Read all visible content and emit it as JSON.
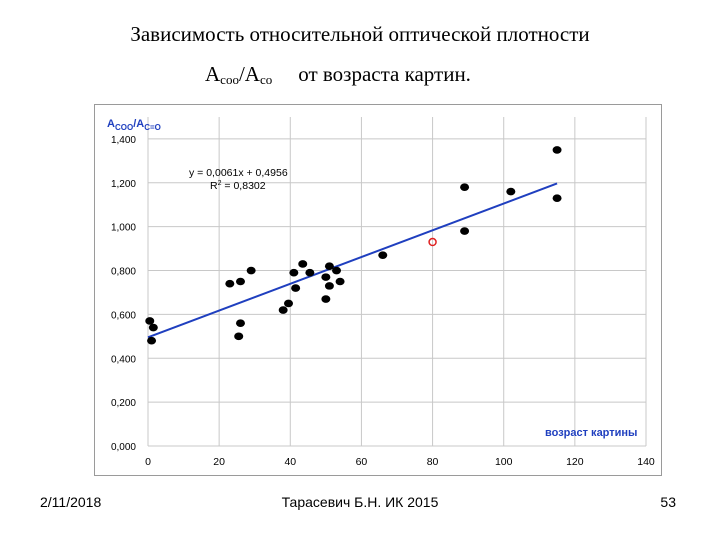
{
  "slide": {
    "title_line1": "Зависимость относительной оптической плотности",
    "title_line2_a": "A",
    "title_line2_a_sub": "coo",
    "title_line2_sep": "/A",
    "title_line2_b_sub": "co",
    "title_line2_rest": "от возраста картин."
  },
  "footer": {
    "date": "2/11/2018",
    "author": "Тарасевич Б.Н. ИК 2015",
    "page": "53"
  },
  "chart_data": {
    "type": "scatter",
    "ylabel": "A",
    "ylabel_sub1": "COO",
    "ylabel_mid": "/A",
    "ylabel_sub2": "C=O",
    "xlabel": "возраст картины",
    "equation": "y = 0,0061x + 0,4956",
    "r2_prefix": "R",
    "r2_sup": "2",
    "r2_value": " = 0,8302",
    "xlim": [
      0,
      140
    ],
    "ylim": [
      0,
      1.5
    ],
    "x_ticks": [
      0,
      20,
      40,
      60,
      80,
      100,
      120,
      140
    ],
    "x_tick_labels": [
      "0",
      "20",
      "40",
      "60",
      "80",
      "100",
      "120",
      "140"
    ],
    "y_ticks": [
      0,
      0.2,
      0.4,
      0.6,
      0.8,
      1.0,
      1.2,
      1.4
    ],
    "y_tick_labels": [
      "0,000",
      "0,200",
      "0,400",
      "0,600",
      "0,800",
      "1,000",
      "1,200",
      "1,400"
    ],
    "grid": true,
    "trendline": {
      "slope": 0.0061,
      "intercept": 0.4956,
      "x_range": [
        0,
        115
      ],
      "color": "#1f3fbf"
    },
    "point_color": "#000000",
    "highlight_color": "#e02020",
    "points": [
      {
        "x": 0.5,
        "y": 0.57
      },
      {
        "x": 1.5,
        "y": 0.54
      },
      {
        "x": 1,
        "y": 0.48
      },
      {
        "x": 23,
        "y": 0.74
      },
      {
        "x": 26,
        "y": 0.75
      },
      {
        "x": 29,
        "y": 0.8
      },
      {
        "x": 26,
        "y": 0.56
      },
      {
        "x": 25.5,
        "y": 0.5
      },
      {
        "x": 38,
        "y": 0.62
      },
      {
        "x": 39.5,
        "y": 0.65
      },
      {
        "x": 41,
        "y": 0.79
      },
      {
        "x": 41.5,
        "y": 0.72
      },
      {
        "x": 43.5,
        "y": 0.83
      },
      {
        "x": 45.5,
        "y": 0.79
      },
      {
        "x": 50,
        "y": 0.67
      },
      {
        "x": 50,
        "y": 0.77
      },
      {
        "x": 51,
        "y": 0.82
      },
      {
        "x": 51,
        "y": 0.73
      },
      {
        "x": 53,
        "y": 0.8
      },
      {
        "x": 54,
        "y": 0.75
      },
      {
        "x": 66,
        "y": 0.87
      },
      {
        "x": 89,
        "y": 1.18
      },
      {
        "x": 89,
        "y": 0.98
      },
      {
        "x": 102,
        "y": 1.16
      },
      {
        "x": 115,
        "y": 1.35
      },
      {
        "x": 115,
        "y": 1.13
      }
    ],
    "highlight_points": [
      {
        "x": 80,
        "y": 0.93
      }
    ]
  }
}
